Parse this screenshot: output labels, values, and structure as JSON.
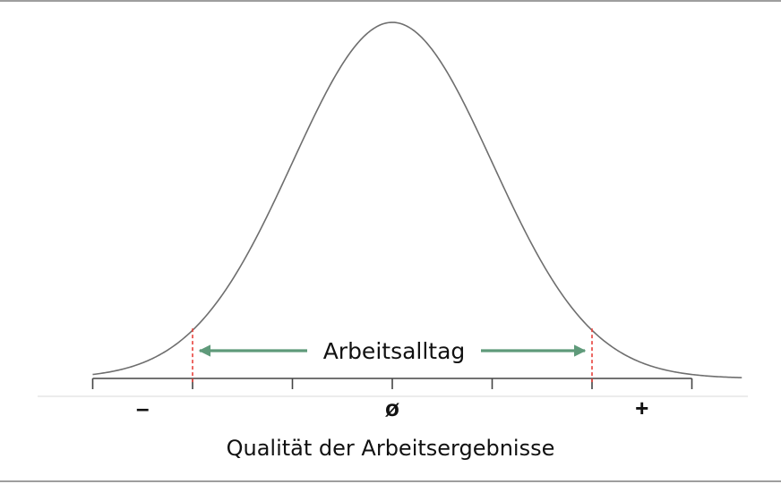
{
  "chart_data": {
    "type": "line",
    "title": "",
    "xlabel": "Qualität der Arbeitsergebnisse",
    "ylabel": "",
    "distribution": "normal",
    "mean": 0,
    "sd": 1,
    "xlim": [
      -3.0,
      3.5
    ],
    "tick_values": [
      -3,
      -2,
      -1,
      0,
      1,
      2,
      3
    ],
    "tick_labels": [
      {
        "x": -2.5,
        "text": "–"
      },
      {
        "x": 0,
        "text": "ø"
      },
      {
        "x": 2.5,
        "text": "+"
      }
    ],
    "range_markers": [
      -2,
      2
    ],
    "range_label": "Arbeitsalltag",
    "grid": false,
    "legend": "none",
    "colors": {
      "curve": "#6e6e6e",
      "axis": "#444444",
      "marker": "#e8413b",
      "arrow": "#5f9a7a",
      "text": "#111111"
    }
  }
}
